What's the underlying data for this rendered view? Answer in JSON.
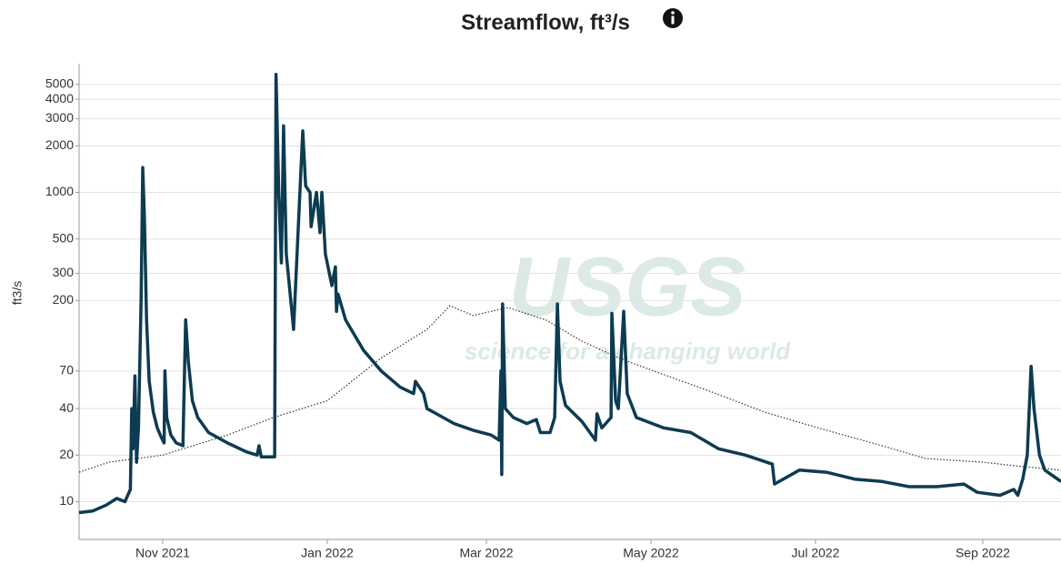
{
  "chart_data": {
    "type": "line",
    "title": "Streamflow, ft³/s",
    "y_label": "ft3/s",
    "watermark": "USGS",
    "watermark_tagline": "science for a changing world",
    "log_y": true,
    "grid": true,
    "ylim": [
      5.7,
      6800
    ],
    "yticks": [
      10,
      20,
      40,
      70,
      200,
      300,
      500,
      1000,
      2000,
      3000,
      4000,
      5000
    ],
    "xlim": [
      0,
      364
    ],
    "xticks": [
      {
        "value": 31,
        "label": "Nov 2021"
      },
      {
        "value": 92,
        "label": "Jan 2022"
      },
      {
        "value": 151,
        "label": "Mar 2022"
      },
      {
        "value": 212,
        "label": "May 2022"
      },
      {
        "value": 273,
        "label": "Jul 2022"
      },
      {
        "value": 335,
        "label": "Sep 2022"
      }
    ],
    "series": [
      {
        "color": "#0d3b52",
        "style": "solid",
        "x": [
          0,
          5,
          10,
          14,
          17,
          19,
          19.5,
          20,
          20.7,
          21.3,
          22,
          23,
          23.6,
          24.2,
          25,
          26,
          27.5,
          29,
          30.5,
          31.5,
          31.8,
          32.5,
          34,
          36,
          38.5,
          39.5,
          40.5,
          42,
          44,
          48,
          55,
          62,
          66,
          66.7,
          67.5,
          72.5,
          73,
          74,
          75,
          75.8,
          76.8,
          79.5,
          82.9,
          84,
          85.6,
          86,
          88,
          89.3,
          90,
          91.3,
          93.7,
          95,
          95.4,
          96,
          98.8,
          105.5,
          112,
          119,
          124,
          124.7,
          127.7,
          129,
          132.5,
          139,
          146,
          152.7,
          155.7,
          156.4,
          156.7,
          157,
          158,
          161,
          166,
          169.5,
          171,
          174.6,
          176.3,
          177.3,
          178.3,
          180.3,
          186.4,
          191.4,
          192,
          193.8,
          197.2,
          197.5,
          198.9,
          199.9,
          201.9,
          203.2,
          206.6,
          216.7,
          226.8,
          237,
          247,
          257,
          257.8,
          267,
          277,
          287.5,
          297.6,
          307.7,
          317.8,
          328,
          333,
          341.4,
          346.5,
          348,
          349.8,
          351.5,
          352.9,
          354,
          356,
          358,
          364
        ],
        "values": [
          8.5,
          8.7,
          9.5,
          10.5,
          10,
          12,
          40,
          22,
          65,
          18,
          30,
          200,
          1450,
          700,
          150,
          60,
          38,
          30,
          26,
          24,
          70,
          35,
          27,
          24,
          23,
          150,
          80,
          45,
          35,
          28,
          24,
          21,
          20,
          23,
          19.5,
          19.5,
          5800,
          1000,
          350,
          2700,
          400,
          130,
          2500,
          1100,
          1000,
          600,
          1000,
          550,
          1000,
          400,
          250,
          330,
          170,
          220,
          150,
          95,
          70,
          55,
          50,
          60,
          50,
          40,
          37,
          32,
          29,
          27,
          25,
          70,
          15,
          190,
          40,
          35,
          32,
          34,
          28,
          28,
          35,
          190,
          60,
          42,
          33,
          25,
          37,
          30,
          35,
          165,
          45,
          40,
          170,
          50,
          35,
          30,
          28,
          22,
          20,
          17.5,
          13,
          16,
          15.5,
          14,
          13.5,
          12.5,
          12.5,
          13,
          11.5,
          11,
          12,
          11,
          14,
          20,
          75,
          40,
          20,
          16,
          13.5
        ]
      },
      {
        "color": "#333333",
        "style": "dotted",
        "x": [
          0,
          11,
          31,
          55,
          72,
          92,
          112,
          129,
          137.5,
          146,
          159,
          173,
          186,
          200,
          213,
          233.6,
          254,
          274,
          294,
          314,
          335,
          348,
          364
        ],
        "values": [
          15.5,
          18,
          20,
          27,
          35,
          45,
          85,
          130,
          185,
          160,
          180,
          150,
          110,
          85,
          70,
          52,
          38,
          30,
          24,
          19,
          18,
          17,
          16
        ]
      }
    ]
  }
}
